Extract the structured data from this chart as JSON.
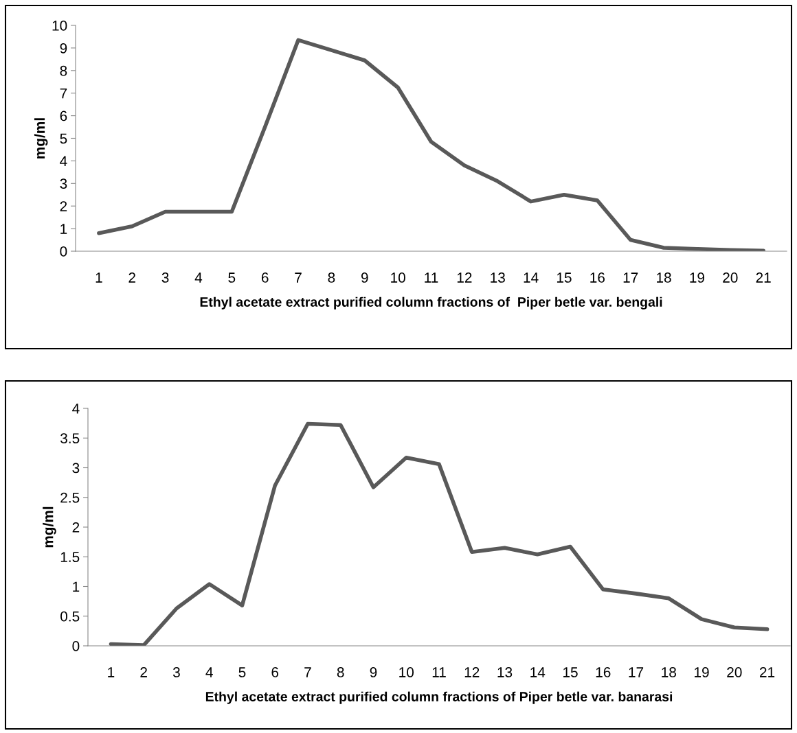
{
  "chart_data": [
    {
      "type": "line",
      "xlabel": "Ethyl acetate extract purified column fractions of  Piper betle var. bengali",
      "ylabel": "mg/ml",
      "categories": [
        "1",
        "2",
        "3",
        "4",
        "5",
        "6",
        "7",
        "8",
        "9",
        "10",
        "11",
        "12",
        "13",
        "14",
        "15",
        "16",
        "17",
        "18",
        "19",
        "20",
        "21"
      ],
      "series": [
        {
          "color": "#595959",
          "values": [
            0.8,
            1.1,
            1.75,
            1.75,
            1.75,
            5.5,
            9.35,
            8.9,
            8.45,
            7.25,
            4.85,
            3.8,
            3.1,
            2.2,
            2.5,
            2.25,
            0.5,
            0.15,
            0.1,
            0.05,
            0.02
          ]
        }
      ],
      "ylim": [
        0,
        10
      ],
      "yticks": [
        0,
        1,
        2,
        3,
        4,
        5,
        6,
        7,
        8,
        9,
        10
      ],
      "grid": false,
      "legend": false,
      "marker": "none",
      "line_style": "solid"
    },
    {
      "type": "line",
      "xlabel": "Ethyl acetate extract purified column fractions of Piper betle var. banarasi",
      "ylabel": "mg/ml",
      "categories": [
        "1",
        "2",
        "3",
        "4",
        "5",
        "6",
        "7",
        "8",
        "9",
        "10",
        "11",
        "12",
        "13",
        "14",
        "15",
        "16",
        "17",
        "18",
        "19",
        "20",
        "21"
      ],
      "series": [
        {
          "color": "#595959",
          "values": [
            0.03,
            0.01,
            0.63,
            1.04,
            0.68,
            2.7,
            3.74,
            3.72,
            2.67,
            3.17,
            3.06,
            1.58,
            1.65,
            1.54,
            1.67,
            0.95,
            0.88,
            0.8,
            0.45,
            0.31,
            0.28
          ]
        }
      ],
      "ylim": [
        0,
        4
      ],
      "yticks": [
        0,
        {
          "value": 0.5,
          "label": "0.5"
        },
        1,
        {
          "value": 1.5,
          "label": "1.5"
        },
        2,
        {
          "value": 2.5,
          "label": "2.5"
        },
        3,
        {
          "value": 3.5,
          "label": "3.5"
        },
        4
      ],
      "grid": false,
      "legend": false,
      "marker": "none",
      "line_style": "solid"
    }
  ]
}
